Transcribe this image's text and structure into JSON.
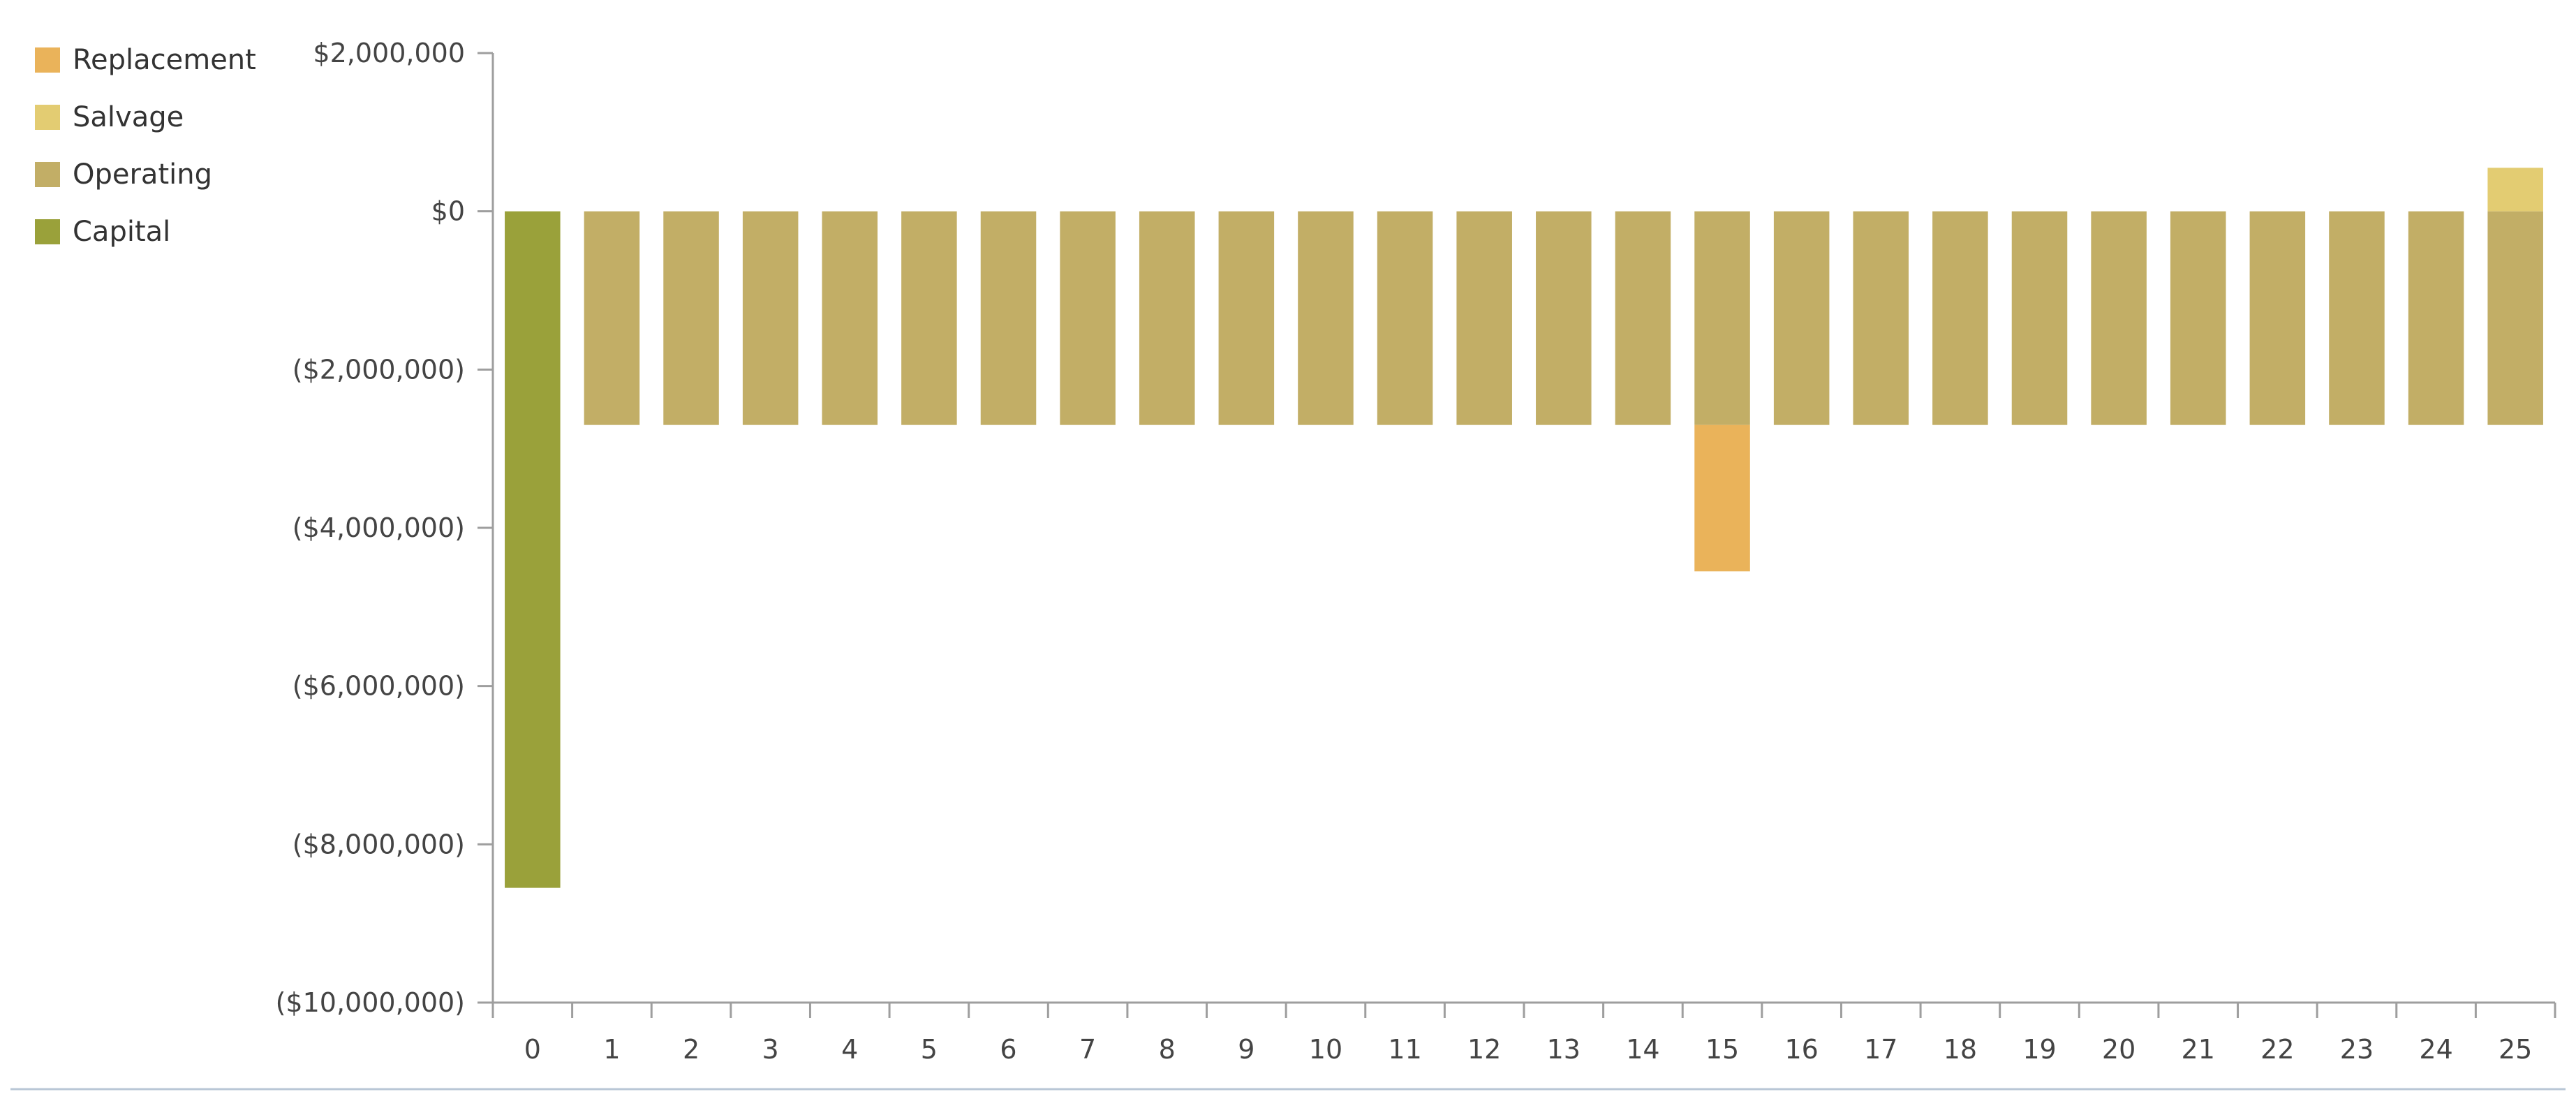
{
  "chart_data": {
    "type": "bar",
    "stacked": true,
    "categories": [
      "0",
      "1",
      "2",
      "3",
      "4",
      "5",
      "6",
      "7",
      "8",
      "9",
      "10",
      "11",
      "12",
      "13",
      "14",
      "15",
      "16",
      "17",
      "18",
      "19",
      "20",
      "21",
      "22",
      "23",
      "24",
      "25"
    ],
    "series": [
      {
        "name": "Replacement",
        "color": "#EAB35A",
        "values": [
          0,
          0,
          0,
          0,
          0,
          0,
          0,
          0,
          0,
          0,
          0,
          0,
          0,
          0,
          0,
          -1850000,
          0,
          0,
          0,
          0,
          0,
          0,
          0,
          0,
          0,
          0
        ]
      },
      {
        "name": "Salvage",
        "color": "#E3CC72",
        "values": [
          0,
          0,
          0,
          0,
          0,
          0,
          0,
          0,
          0,
          0,
          0,
          0,
          0,
          0,
          0,
          0,
          0,
          0,
          0,
          0,
          0,
          0,
          0,
          0,
          0,
          550000
        ]
      },
      {
        "name": "Operating",
        "color": "#C2AE66",
        "values": [
          0,
          -2700000,
          -2700000,
          -2700000,
          -2700000,
          -2700000,
          -2700000,
          -2700000,
          -2700000,
          -2700000,
          -2700000,
          -2700000,
          -2700000,
          -2700000,
          -2700000,
          -2700000,
          -2700000,
          -2700000,
          -2700000,
          -2700000,
          -2700000,
          -2700000,
          -2700000,
          -2700000,
          -2700000,
          -2700000
        ]
      },
      {
        "name": "Capital",
        "color": "#9AA13A",
        "values": [
          -8550000,
          0,
          0,
          0,
          0,
          0,
          0,
          0,
          0,
          0,
          0,
          0,
          0,
          0,
          0,
          0,
          0,
          0,
          0,
          0,
          0,
          0,
          0,
          0,
          0,
          0
        ]
      }
    ],
    "ylim": [
      -10000000,
      2000000
    ],
    "y_ticks": [
      2000000,
      0,
      -2000000,
      -4000000,
      -6000000,
      -8000000,
      -10000000
    ],
    "y_tick_labels": [
      "$2,000,000",
      "$0",
      "($2,000,000)",
      "($4,000,000)",
      "($6,000,000)",
      "($8,000,000)",
      "($10,000,000)"
    ],
    "legend_position": "top-left",
    "grid": false
  }
}
